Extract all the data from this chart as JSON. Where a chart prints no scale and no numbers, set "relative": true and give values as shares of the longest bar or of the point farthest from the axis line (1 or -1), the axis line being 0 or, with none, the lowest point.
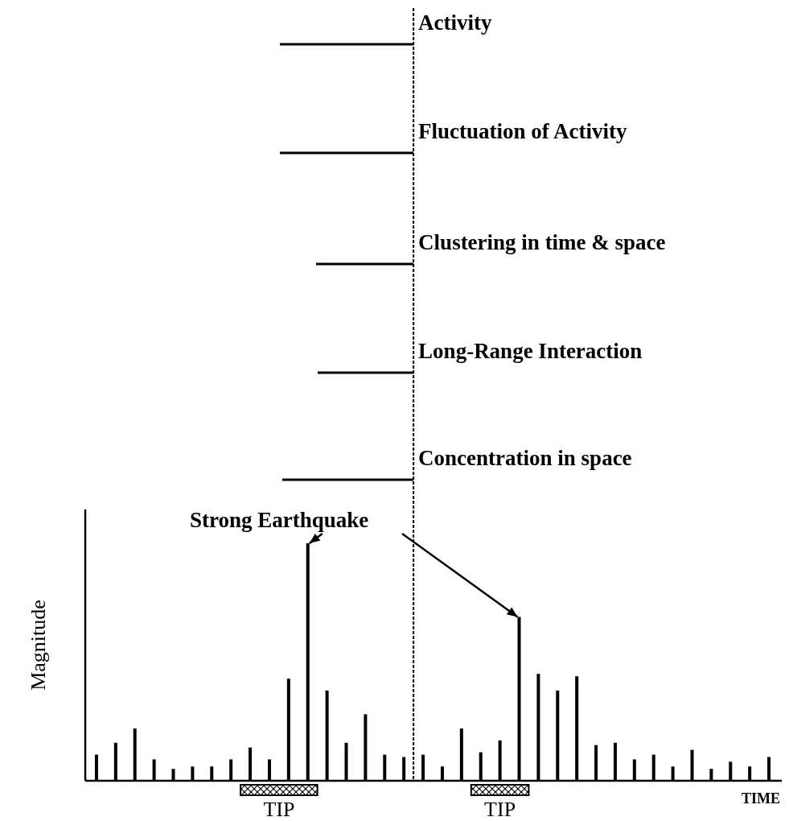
{
  "chart_data": {
    "type": "bar",
    "relative": true,
    "xlabel": "TIME",
    "ylabel": "Magnitude",
    "categories": [
      null,
      null,
      null,
      null,
      null,
      null,
      null,
      null,
      null,
      null,
      null,
      null,
      null,
      null,
      null,
      null,
      null,
      null,
      null,
      null,
      null,
      null,
      null,
      null,
      null,
      null,
      null,
      null,
      null,
      null,
      null,
      null,
      null,
      null,
      null,
      null
    ],
    "color": "#000000",
    "values": [
      0.11,
      0.16,
      0.22,
      0.09,
      0.05,
      0.06,
      0.06,
      0.09,
      0.14,
      0.09,
      0.43,
      1,
      0.38,
      0.16,
      0.28,
      0.11,
      0.1,
      0.11,
      0.06,
      0.22,
      0.12,
      0.17,
      0.69,
      0.45,
      0.38,
      0.44,
      0.15,
      0.16,
      0.09,
      0.11,
      0.06,
      0.13,
      0.05,
      0.08,
      0.06,
      0.1
    ],
    "annotations": [
      "Activity",
      "Fluctuation of Activity",
      "Clustering in time & space",
      "Long-Range Interaction",
      "Concentration in space",
      "Strong Earthquake",
      "TIP",
      "TIP"
    ]
  }
}
